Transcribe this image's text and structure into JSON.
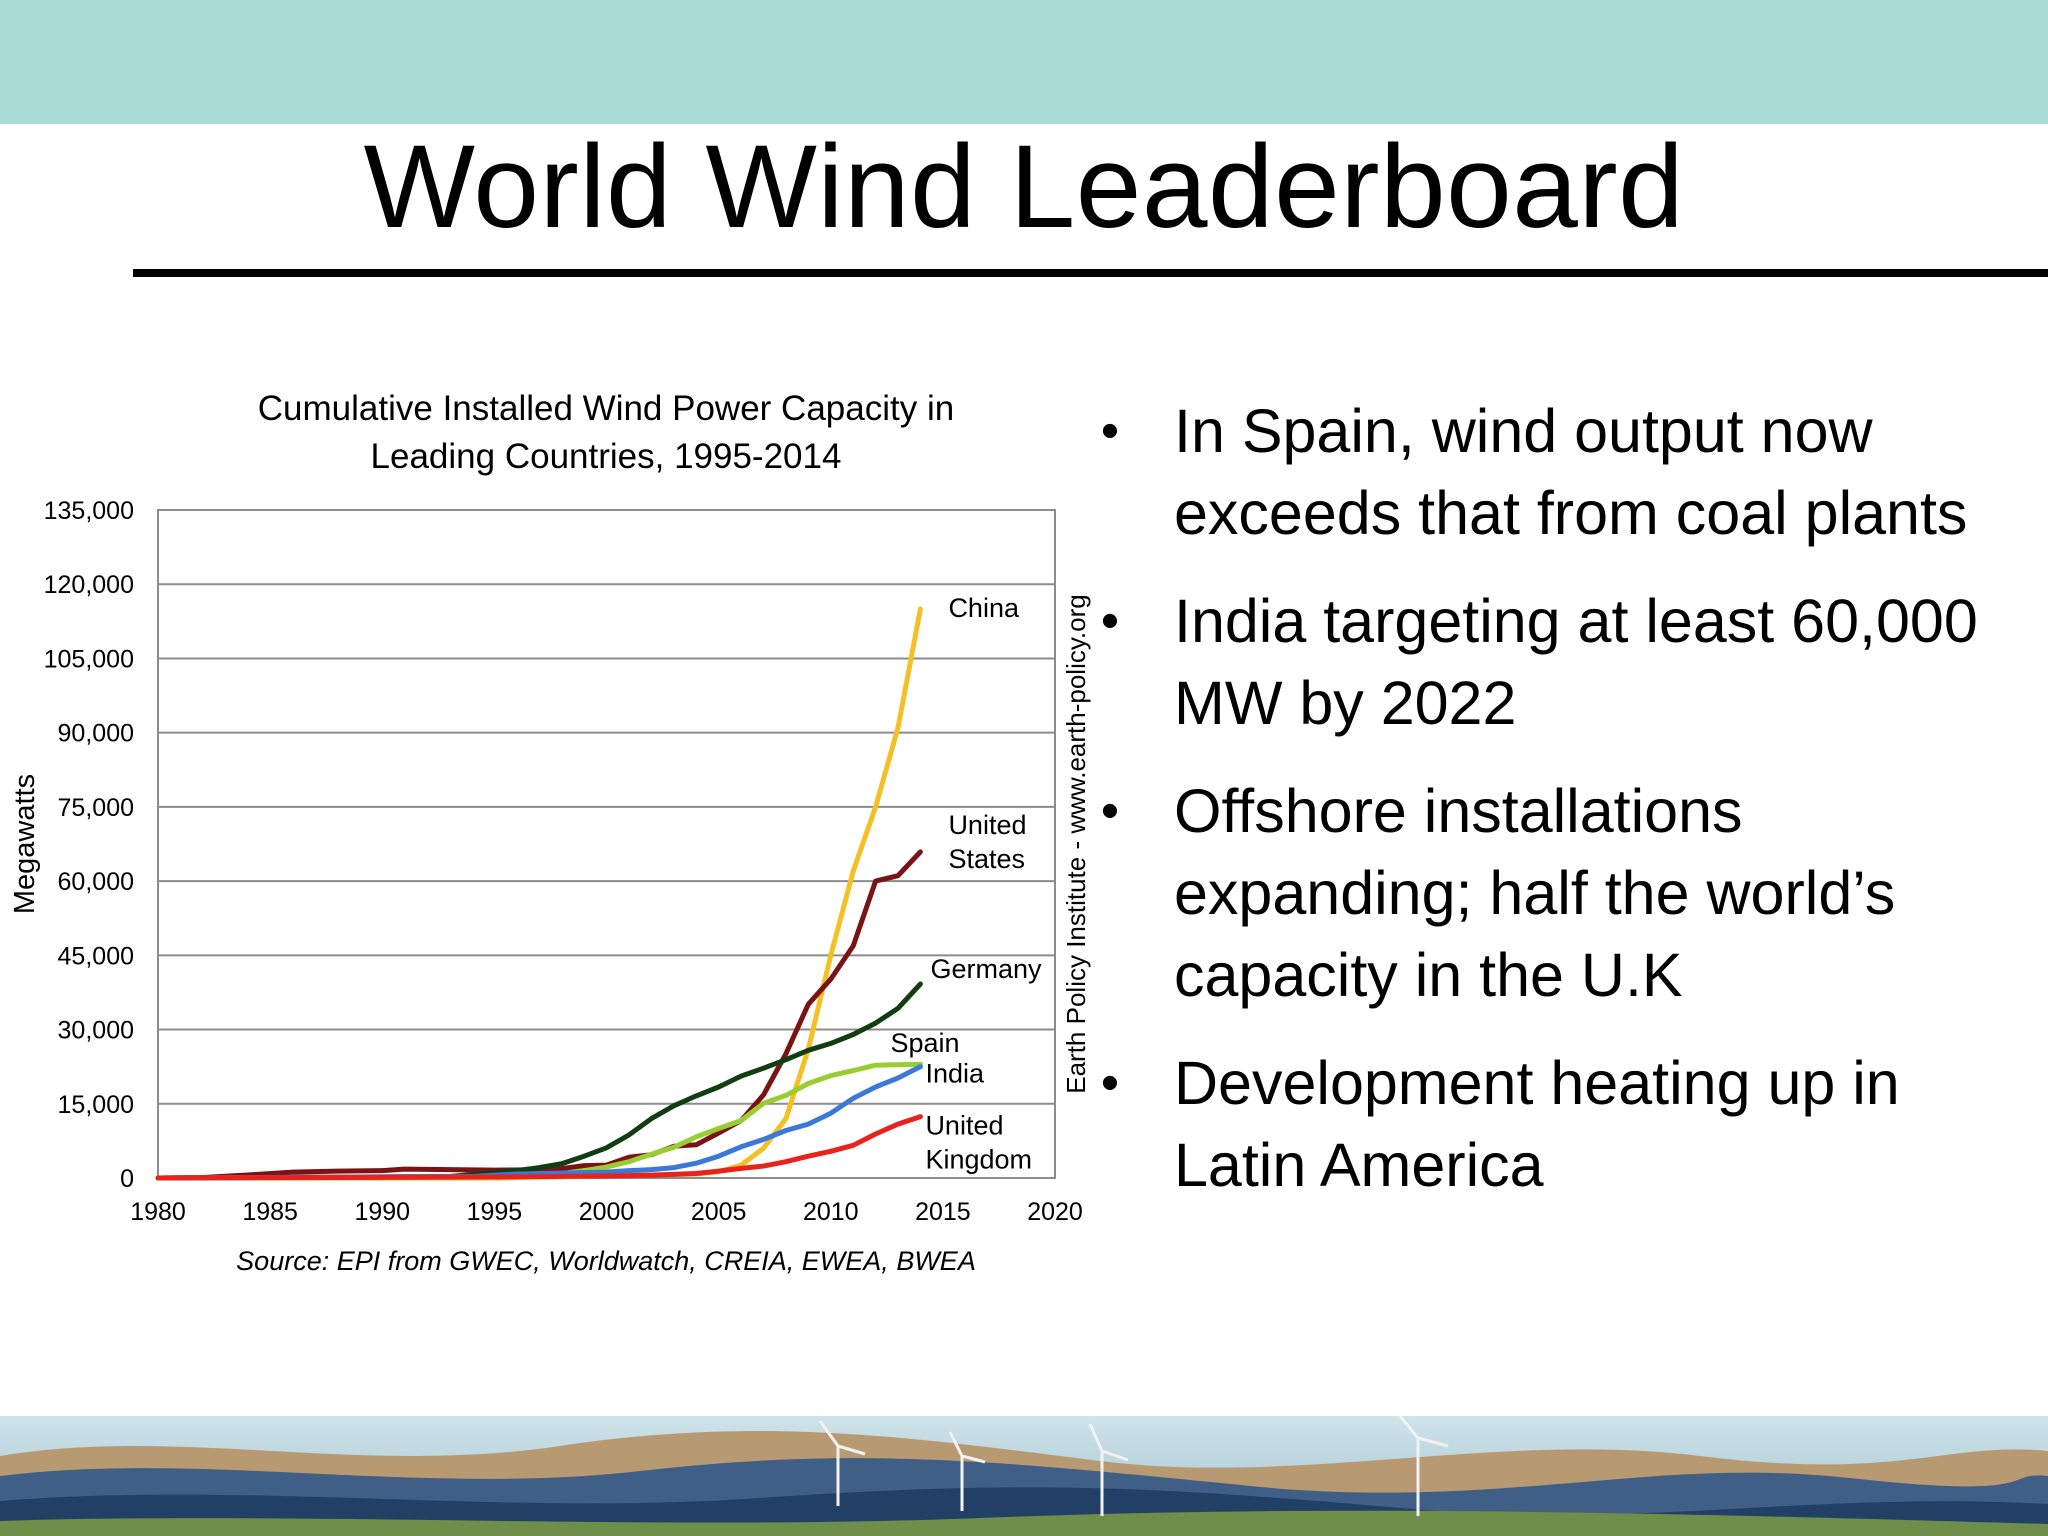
{
  "slide": {
    "title": "World Wind Leaderboard",
    "colors": {
      "band": "#a9dcd6",
      "rule": "#000000"
    }
  },
  "bullets": [
    "In Spain, wind output now exceeds that from coal plants",
    "India targeting at least 60,000 MW by 2022",
    "Offshore installations expanding; half the world’s capacity in the U.K",
    "Development heating up in Latin America"
  ],
  "chart_data": {
    "type": "line",
    "title": "Cumulative Installed Wind Power Capacity in Leading Countries, 1995-2014",
    "xlabel": "",
    "ylabel": "Megawatts",
    "xlim": [
      1980,
      2020
    ],
    "ylim": [
      0,
      135000
    ],
    "xticks": [
      "1980",
      "1985",
      "1990",
      "1995",
      "2000",
      "2005",
      "2010",
      "2015",
      "2020"
    ],
    "yticks": [
      "0",
      "15,000",
      "30,000",
      "45,000",
      "60,000",
      "75,000",
      "90,000",
      "105,000",
      "120,000",
      "135,000"
    ],
    "grid": "horizontal",
    "source": "Source: EPI from GWEC, Worldwatch, CREIA, EWEA, BWEA",
    "side_note": "Earth Policy Institute - www.earth-policy.org",
    "series": [
      {
        "name": "China",
        "label_lines": [
          "China"
        ],
        "color": "#f5c024",
        "points": [
          [
            1980,
            0
          ],
          [
            1995,
            0
          ],
          [
            2004,
            800
          ],
          [
            2005,
            1300
          ],
          [
            2006,
            2600
          ],
          [
            2007,
            6000
          ],
          [
            2008,
            12000
          ],
          [
            2009,
            26000
          ],
          [
            2010,
            45000
          ],
          [
            2011,
            62000
          ],
          [
            2012,
            75000
          ],
          [
            2013,
            91000
          ],
          [
            2014,
            115000
          ]
        ]
      },
      {
        "name": "United States",
        "label_lines": [
          "United",
          "States"
        ],
        "color": "#7a1414",
        "points": [
          [
            1980,
            0
          ],
          [
            1982,
            100
          ],
          [
            1984,
            600
          ],
          [
            1986,
            1200
          ],
          [
            1988,
            1400
          ],
          [
            1990,
            1500
          ],
          [
            1991,
            1800
          ],
          [
            1993,
            1700
          ],
          [
            1995,
            1600
          ],
          [
            1997,
            1650
          ],
          [
            1998,
            1900
          ],
          [
            1999,
            2500
          ],
          [
            2000,
            2600
          ],
          [
            2001,
            4200
          ],
          [
            2002,
            4700
          ],
          [
            2003,
            6400
          ],
          [
            2004,
            6700
          ],
          [
            2005,
            9100
          ],
          [
            2006,
            11600
          ],
          [
            2007,
            16800
          ],
          [
            2008,
            25100
          ],
          [
            2009,
            35100
          ],
          [
            2010,
            40200
          ],
          [
            2011,
            46900
          ],
          [
            2012,
            60000
          ],
          [
            2013,
            61100
          ],
          [
            2014,
            65900
          ]
        ]
      },
      {
        "name": "Germany",
        "label_lines": [
          "Germany"
        ],
        "color": "#123d12",
        "points": [
          [
            1980,
            0
          ],
          [
            1993,
            300
          ],
          [
            1995,
            1100
          ],
          [
            1996,
            1500
          ],
          [
            1997,
            2100
          ],
          [
            1998,
            2900
          ],
          [
            1999,
            4400
          ],
          [
            2000,
            6100
          ],
          [
            2001,
            8700
          ],
          [
            2002,
            12000
          ],
          [
            2003,
            14600
          ],
          [
            2004,
            16600
          ],
          [
            2005,
            18400
          ],
          [
            2006,
            20600
          ],
          [
            2007,
            22200
          ],
          [
            2008,
            23900
          ],
          [
            2009,
            25800
          ],
          [
            2010,
            27200
          ],
          [
            2011,
            29000
          ],
          [
            2012,
            31300
          ],
          [
            2013,
            34300
          ],
          [
            2014,
            39200
          ]
        ]
      },
      {
        "name": "Spain",
        "label_lines": [
          "Spain"
        ],
        "color": "#9acd32",
        "points": [
          [
            1980,
            0
          ],
          [
            1996,
            300
          ],
          [
            1998,
            800
          ],
          [
            1999,
            1500
          ],
          [
            2000,
            2200
          ],
          [
            2001,
            3300
          ],
          [
            2002,
            4800
          ],
          [
            2003,
            6200
          ],
          [
            2004,
            8300
          ],
          [
            2005,
            10000
          ],
          [
            2006,
            11600
          ],
          [
            2007,
            15100
          ],
          [
            2008,
            16700
          ],
          [
            2009,
            19100
          ],
          [
            2010,
            20700
          ],
          [
            2011,
            21700
          ],
          [
            2012,
            22800
          ],
          [
            2013,
            22900
          ],
          [
            2014,
            23000
          ]
        ]
      },
      {
        "name": "India",
        "label_lines": [
          "India"
        ],
        "color": "#3b78d8",
        "points": [
          [
            1980,
            0
          ],
          [
            1994,
            300
          ],
          [
            1996,
            800
          ],
          [
            1998,
            1000
          ],
          [
            2000,
            1200
          ],
          [
            2001,
            1500
          ],
          [
            2002,
            1700
          ],
          [
            2003,
            2100
          ],
          [
            2004,
            3000
          ],
          [
            2005,
            4400
          ],
          [
            2006,
            6300
          ],
          [
            2007,
            7800
          ],
          [
            2008,
            9600
          ],
          [
            2009,
            10900
          ],
          [
            2010,
            13100
          ],
          [
            2011,
            16100
          ],
          [
            2012,
            18400
          ],
          [
            2013,
            20200
          ],
          [
            2014,
            22500
          ]
        ]
      },
      {
        "name": "United Kingdom",
        "label_lines": [
          "United",
          "Kingdom"
        ],
        "color": "#e8231d",
        "points": [
          [
            1980,
            0
          ],
          [
            1995,
            200
          ],
          [
            2000,
            400
          ],
          [
            2002,
            550
          ],
          [
            2004,
            900
          ],
          [
            2005,
            1400
          ],
          [
            2006,
            1950
          ],
          [
            2007,
            2400
          ],
          [
            2008,
            3300
          ],
          [
            2009,
            4400
          ],
          [
            2010,
            5400
          ],
          [
            2011,
            6600
          ],
          [
            2012,
            8900
          ],
          [
            2013,
            10900
          ],
          [
            2014,
            12400
          ]
        ]
      }
    ]
  }
}
